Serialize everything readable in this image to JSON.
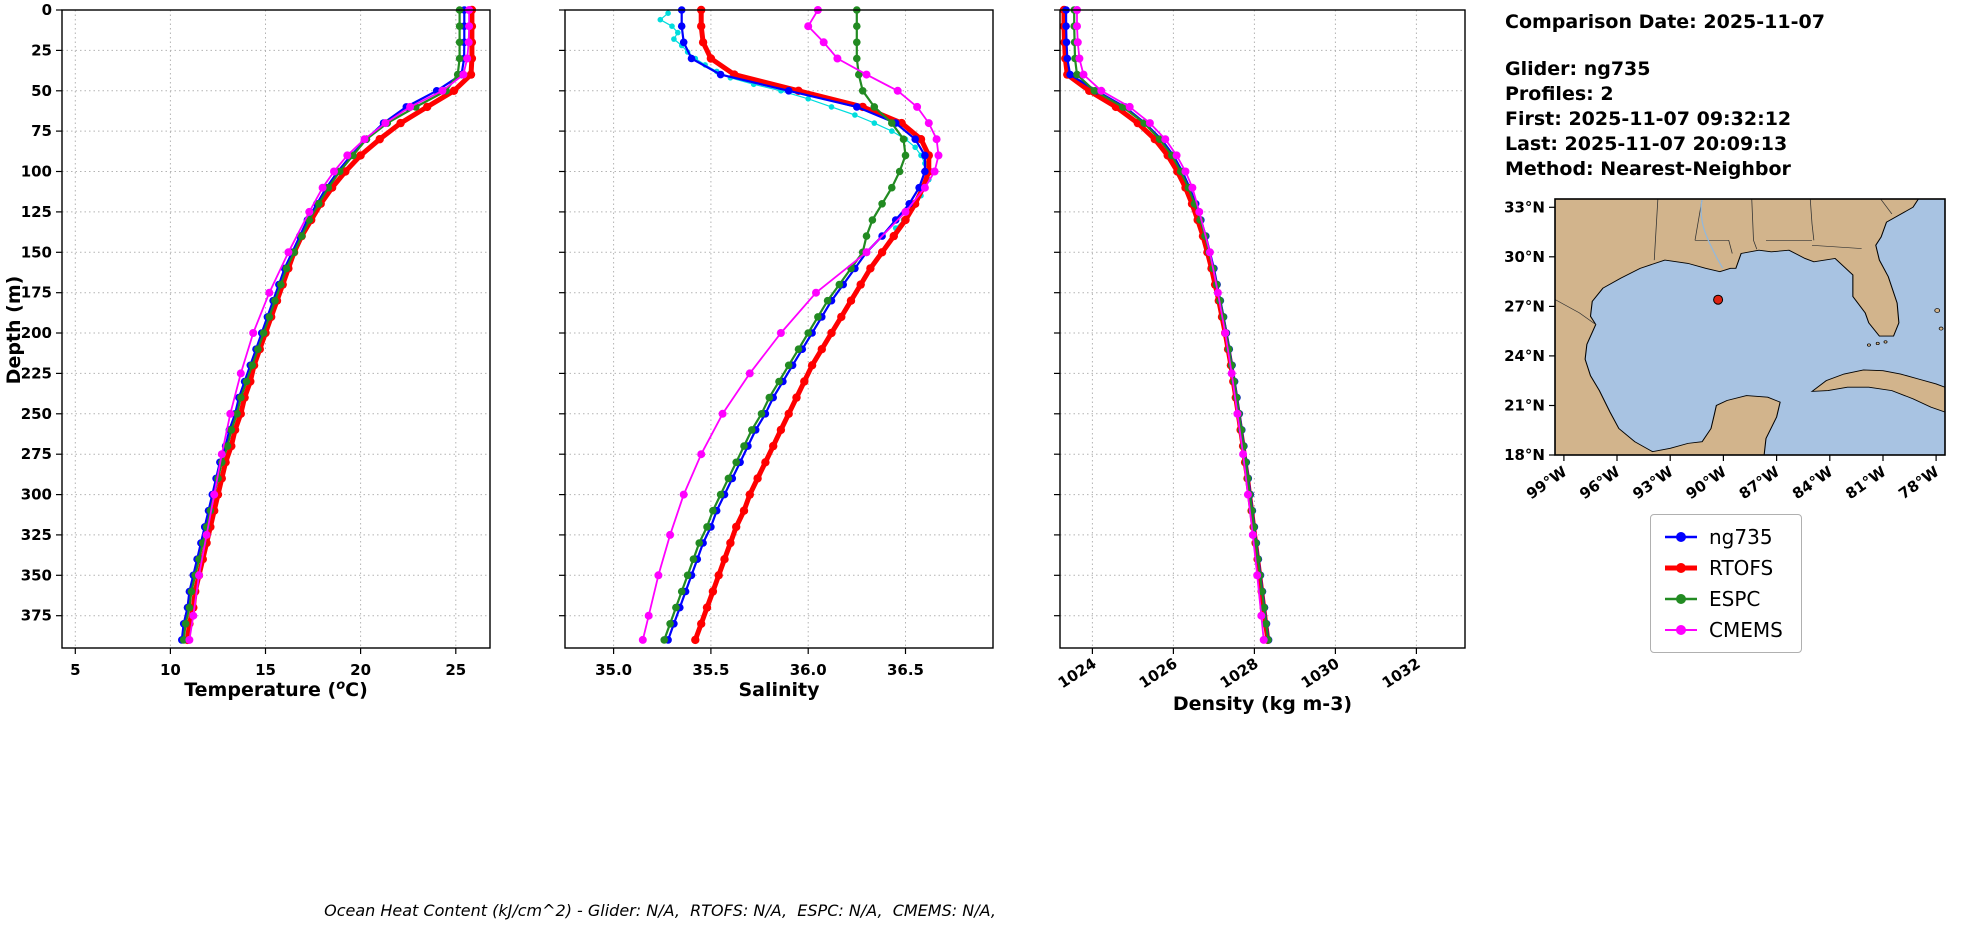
{
  "info": {
    "comparison_date": "Comparison Date: 2025-11-07",
    "glider": "Glider: ng735",
    "profiles": "Profiles: 2",
    "first": "First: 2025-11-07 09:32:12",
    "last": "Last: 2025-11-07 20:09:13",
    "method": "Method: Nearest-Neighbor"
  },
  "footer": {
    "text": "Ocean Heat Content (kJ/cm^2) - Glider: N/A,  RTOFS: N/A,  ESPC: N/A,  CMEMS: N/A,"
  },
  "legend": {
    "items": [
      {
        "label": "ng735",
        "color": "#0000ff",
        "line_width": 2.5
      },
      {
        "label": "RTOFS",
        "color": "#ff0000",
        "line_width": 5
      },
      {
        "label": "ESPC",
        "color": "#228b22",
        "line_width": 2.5
      },
      {
        "label": "CMEMS",
        "color": "#ff00ff",
        "line_width": 2
      }
    ]
  },
  "map": {
    "extent": {
      "lon_min": -99.5,
      "lon_max": -77.5,
      "lat_min": 18,
      "lat_max": 33.5
    },
    "lat_ticks": [
      {
        "value": 33,
        "label": "33°N"
      },
      {
        "value": 30,
        "label": "30°N"
      },
      {
        "value": 27,
        "label": "27°N"
      },
      {
        "value": 24,
        "label": "24°N"
      },
      {
        "value": 21,
        "label": "21°N"
      },
      {
        "value": 18,
        "label": "18°N"
      }
    ],
    "lon_ticks": [
      {
        "value": -99,
        "label": "99°W"
      },
      {
        "value": -96,
        "label": "96°W"
      },
      {
        "value": -93,
        "label": "93°W"
      },
      {
        "value": -90,
        "label": "90°W"
      },
      {
        "value": -87,
        "label": "87°W"
      },
      {
        "value": -84,
        "label": "84°W"
      },
      {
        "value": -81,
        "label": "81°W"
      },
      {
        "value": -78,
        "label": "78°W"
      }
    ],
    "marker": {
      "lon": -90.3,
      "lat": 27.4,
      "color": "#dd2211"
    },
    "colors": {
      "land": "#d2b48c",
      "water": "#a8c3e2",
      "coast": "#000000",
      "river": "#92b8dc"
    }
  },
  "chart_data": {
    "type": "line",
    "description": "Glider ng735 vs model (RTOFS, ESPC, CMEMS) depth profiles of temperature, salinity and density in the Gulf of Mexico",
    "depth_axis": {
      "label": "Depth (m)",
      "min": 0,
      "max": 395,
      "ticks": [
        0,
        25,
        50,
        75,
        100,
        125,
        150,
        175,
        200,
        225,
        250,
        275,
        300,
        325,
        350,
        375
      ]
    },
    "depths_model": [
      0,
      10,
      20,
      30,
      40,
      50,
      60,
      70,
      80,
      90,
      100,
      110,
      120,
      130,
      140,
      150,
      160,
      170,
      180,
      190,
      200,
      210,
      220,
      230,
      240,
      250,
      260,
      270,
      280,
      290,
      300,
      310,
      320,
      330,
      340,
      350,
      360,
      370,
      380,
      390
    ],
    "depths_cmems": [
      0,
      10,
      20,
      30,
      40,
      50,
      60,
      70,
      80,
      90,
      100,
      110,
      125,
      150,
      175,
      200,
      225,
      250,
      275,
      300,
      325,
      350,
      375,
      390
    ],
    "depths_glider": [
      2,
      6,
      10,
      14,
      18,
      22,
      26,
      30,
      34,
      38,
      42,
      46,
      50,
      55,
      60,
      65,
      70,
      75,
      80,
      85,
      90,
      95,
      100,
      105,
      110,
      115,
      120,
      125,
      130,
      135
    ],
    "plots": [
      {
        "id": "temperature",
        "xlabel_pre": "Temperature (",
        "xlabel_sup": "o",
        "xlabel_post": "C)",
        "x_min": 4.3,
        "x_max": 26.8,
        "xticks": [
          5,
          10,
          15,
          20,
          25
        ],
        "xtick_labels": [
          "5",
          "10",
          "15",
          "20",
          "25"
        ],
        "rotate_xticks": false,
        "series": [
          {
            "name": "RTOFS",
            "color": "#ff0000",
            "line_width": 5,
            "marker_r": 4.2,
            "depths": "depths_model",
            "values": [
              25.85,
              25.85,
              25.85,
              25.85,
              25.8,
              24.9,
              23.5,
              22.1,
              21.0,
              20.0,
              19.2,
              18.5,
              17.9,
              17.4,
              16.9,
              16.5,
              16.2,
              15.9,
              15.6,
              15.3,
              15.0,
              14.7,
              14.4,
              14.2,
              13.9,
              13.7,
              13.4,
              13.2,
              12.9,
              12.7,
              12.5,
              12.3,
              12.1,
              11.9,
              11.7,
              11.5,
              11.3,
              11.2,
              11.0,
              10.9
            ]
          },
          {
            "name": "ng735",
            "color": "#0000ff",
            "line_width": 2.2,
            "marker_r": 3.8,
            "depths": "depths_model",
            "values": [
              25.45,
              25.45,
              25.45,
              25.44,
              25.3,
              24.0,
              22.4,
              21.2,
              20.3,
              19.5,
              18.8,
              18.2,
              17.7,
              17.2,
              16.8,
              16.4,
              16.0,
              15.7,
              15.4,
              15.1,
              14.8,
              14.5,
              14.2,
              13.9,
              13.6,
              13.4,
              13.1,
              12.9,
              12.6,
              12.4,
              12.2,
              12.0,
              11.8,
              11.6,
              11.4,
              11.2,
              11.0,
              10.9,
              10.7,
              10.6
            ]
          },
          {
            "name": "ESPC",
            "color": "#228b22",
            "line_width": 2.2,
            "marker_r": 3.8,
            "depths": "depths_model",
            "values": [
              25.2,
              25.2,
              25.2,
              25.2,
              25.1,
              24.5,
              22.9,
              21.4,
              20.3,
              19.6,
              18.9,
              18.3,
              17.8,
              17.3,
              16.9,
              16.5,
              16.1,
              15.8,
              15.5,
              15.2,
              14.9,
              14.6,
              14.3,
              14.0,
              13.7,
              13.5,
              13.2,
              13.0,
              12.7,
              12.5,
              12.3,
              12.1,
              11.9,
              11.7,
              11.5,
              11.3,
              11.1,
              11.0,
              10.8,
              10.7
            ]
          },
          {
            "name": "CMEMS",
            "color": "#ff00ff",
            "line_width": 1.8,
            "marker_r": 4,
            "depths": "depths_cmems",
            "values": [
              25.7,
              25.7,
              25.68,
              25.6,
              25.4,
              24.3,
              22.6,
              21.3,
              20.2,
              19.3,
              18.6,
              18.0,
              17.3,
              16.2,
              15.2,
              14.35,
              13.7,
              13.15,
              12.7,
              12.3,
              11.9,
              11.5,
              11.2,
              11.0
            ]
          }
        ]
      },
      {
        "id": "salinity",
        "xlabel": "Salinity",
        "x_min": 34.75,
        "x_max": 36.95,
        "xticks": [
          35.0,
          35.5,
          36.0,
          36.5
        ],
        "xtick_labels": [
          "35.0",
          "35.5",
          "36.0",
          "36.5"
        ],
        "rotate_xticks": false,
        "series": [
          {
            "name": "ng735 raw",
            "color": "#00dddd",
            "line_width": 1.2,
            "marker_r": 2.8,
            "depths": "depths_glider",
            "values": [
              35.28,
              35.24,
              35.3,
              35.33,
              35.31,
              35.35,
              35.38,
              35.42,
              35.47,
              35.53,
              35.6,
              35.72,
              35.86,
              36.0,
              36.12,
              36.24,
              36.34,
              36.43,
              36.5,
              36.55,
              36.58,
              36.6,
              36.62,
              36.62,
              36.6,
              36.58,
              36.55,
              36.52,
              36.49,
              36.45
            ]
          },
          {
            "name": "RTOFS",
            "color": "#ff0000",
            "line_width": 5,
            "marker_r": 4.2,
            "depths": "depths_model",
            "values": [
              35.45,
              35.45,
              35.46,
              35.5,
              35.62,
              35.95,
              36.28,
              36.48,
              36.58,
              36.62,
              36.62,
              36.59,
              36.55,
              36.5,
              36.44,
              36.38,
              36.32,
              36.27,
              36.22,
              36.17,
              36.12,
              36.07,
              36.02,
              35.98,
              35.94,
              35.9,
              35.86,
              35.82,
              35.78,
              35.74,
              35.7,
              35.67,
              35.63,
              35.6,
              35.57,
              35.54,
              35.51,
              35.48,
              35.45,
              35.42
            ]
          },
          {
            "name": "ng735",
            "color": "#0000ff",
            "line_width": 2.2,
            "marker_r": 3.8,
            "depths": "depths_model",
            "values": [
              35.35,
              35.35,
              35.36,
              35.4,
              35.55,
              35.9,
              36.25,
              36.45,
              36.55,
              36.6,
              36.6,
              36.57,
              36.52,
              36.45,
              36.38,
              36.3,
              36.24,
              36.18,
              36.12,
              36.07,
              36.02,
              35.97,
              35.92,
              35.87,
              35.82,
              35.78,
              35.73,
              35.69,
              35.65,
              35.61,
              35.57,
              35.53,
              35.5,
              35.46,
              35.43,
              35.4,
              35.37,
              35.34,
              35.31,
              35.28
            ]
          },
          {
            "name": "ESPC",
            "color": "#228b22",
            "line_width": 2.2,
            "marker_r": 3.8,
            "depths": "depths_model",
            "values": [
              36.25,
              36.25,
              36.25,
              36.25,
              36.26,
              36.28,
              36.34,
              36.43,
              36.49,
              36.5,
              36.47,
              36.43,
              36.38,
              36.33,
              36.3,
              36.28,
              36.22,
              36.16,
              36.1,
              36.05,
              36.0,
              35.95,
              35.9,
              35.85,
              35.8,
              35.76,
              35.71,
              35.67,
              35.63,
              35.59,
              35.55,
              35.51,
              35.48,
              35.44,
              35.41,
              35.38,
              35.35,
              35.32,
              35.29,
              35.26
            ]
          },
          {
            "name": "CMEMS",
            "color": "#ff00ff",
            "line_width": 1.8,
            "marker_r": 4,
            "depths": "depths_cmems",
            "values": [
              36.05,
              36.0,
              36.08,
              36.15,
              36.3,
              36.46,
              36.56,
              36.62,
              36.66,
              36.67,
              36.65,
              36.6,
              36.5,
              36.3,
              36.04,
              35.86,
              35.7,
              35.56,
              35.45,
              35.36,
              35.29,
              35.23,
              35.18,
              35.15
            ]
          }
        ]
      },
      {
        "id": "density",
        "xlabel": "Density (kg m-3)",
        "x_min": 1023.2,
        "x_max": 1033.2,
        "xticks": [
          1024,
          1026,
          1028,
          1030,
          1032
        ],
        "xtick_labels": [
          "1024",
          "1026",
          "1028",
          "1030",
          "1032"
        ],
        "rotate_xticks": true,
        "series": [
          {
            "name": "RTOFS",
            "color": "#ff0000",
            "line_width": 5,
            "marker_r": 4.2,
            "depths": "depths_model",
            "values": [
              1023.3,
              1023.3,
              1023.31,
              1023.33,
              1023.38,
              1023.92,
              1024.58,
              1025.12,
              1025.54,
              1025.86,
              1026.1,
              1026.3,
              1026.46,
              1026.6,
              1026.73,
              1026.84,
              1026.94,
              1027.03,
              1027.12,
              1027.2,
              1027.28,
              1027.35,
              1027.42,
              1027.48,
              1027.54,
              1027.6,
              1027.66,
              1027.72,
              1027.77,
              1027.83,
              1027.88,
              1027.93,
              1027.98,
              1028.03,
              1028.08,
              1028.13,
              1028.18,
              1028.23,
              1028.28,
              1028.33
            ]
          },
          {
            "name": "ng735",
            "color": "#0000ff",
            "line_width": 2.2,
            "marker_r": 3.8,
            "depths": "depths_model",
            "values": [
              1023.35,
              1023.35,
              1023.36,
              1023.38,
              1023.45,
              1024.1,
              1024.8,
              1025.3,
              1025.7,
              1026.0,
              1026.22,
              1026.4,
              1026.55,
              1026.68,
              1026.8,
              1026.9,
              1027.0,
              1027.08,
              1027.16,
              1027.24,
              1027.31,
              1027.38,
              1027.45,
              1027.51,
              1027.57,
              1027.63,
              1027.69,
              1027.74,
              1027.8,
              1027.85,
              1027.9,
              1027.95,
              1028.0,
              1028.05,
              1028.1,
              1028.15,
              1028.2,
              1028.25,
              1028.3,
              1028.35
            ]
          },
          {
            "name": "ESPC",
            "color": "#228b22",
            "line_width": 2.2,
            "marker_r": 3.8,
            "depths": "depths_model",
            "values": [
              1023.55,
              1023.55,
              1023.56,
              1023.57,
              1023.62,
              1024.05,
              1024.75,
              1025.28,
              1025.66,
              1025.96,
              1026.18,
              1026.37,
              1026.52,
              1026.66,
              1026.78,
              1026.88,
              1026.98,
              1027.07,
              1027.15,
              1027.23,
              1027.3,
              1027.37,
              1027.44,
              1027.5,
              1027.56,
              1027.62,
              1027.68,
              1027.73,
              1027.79,
              1027.84,
              1027.89,
              1027.94,
              1027.99,
              1028.04,
              1028.09,
              1028.14,
              1028.19,
              1028.24,
              1028.29,
              1028.34
            ]
          },
          {
            "name": "CMEMS",
            "color": "#ff00ff",
            "line_width": 1.8,
            "marker_r": 4,
            "depths": "depths_cmems",
            "values": [
              1023.62,
              1023.62,
              1023.64,
              1023.68,
              1023.78,
              1024.22,
              1024.92,
              1025.42,
              1025.8,
              1026.08,
              1026.3,
              1026.47,
              1026.64,
              1026.9,
              1027.1,
              1027.28,
              1027.44,
              1027.58,
              1027.72,
              1027.84,
              1027.96,
              1028.07,
              1028.17,
              1028.23
            ]
          }
        ]
      }
    ]
  }
}
